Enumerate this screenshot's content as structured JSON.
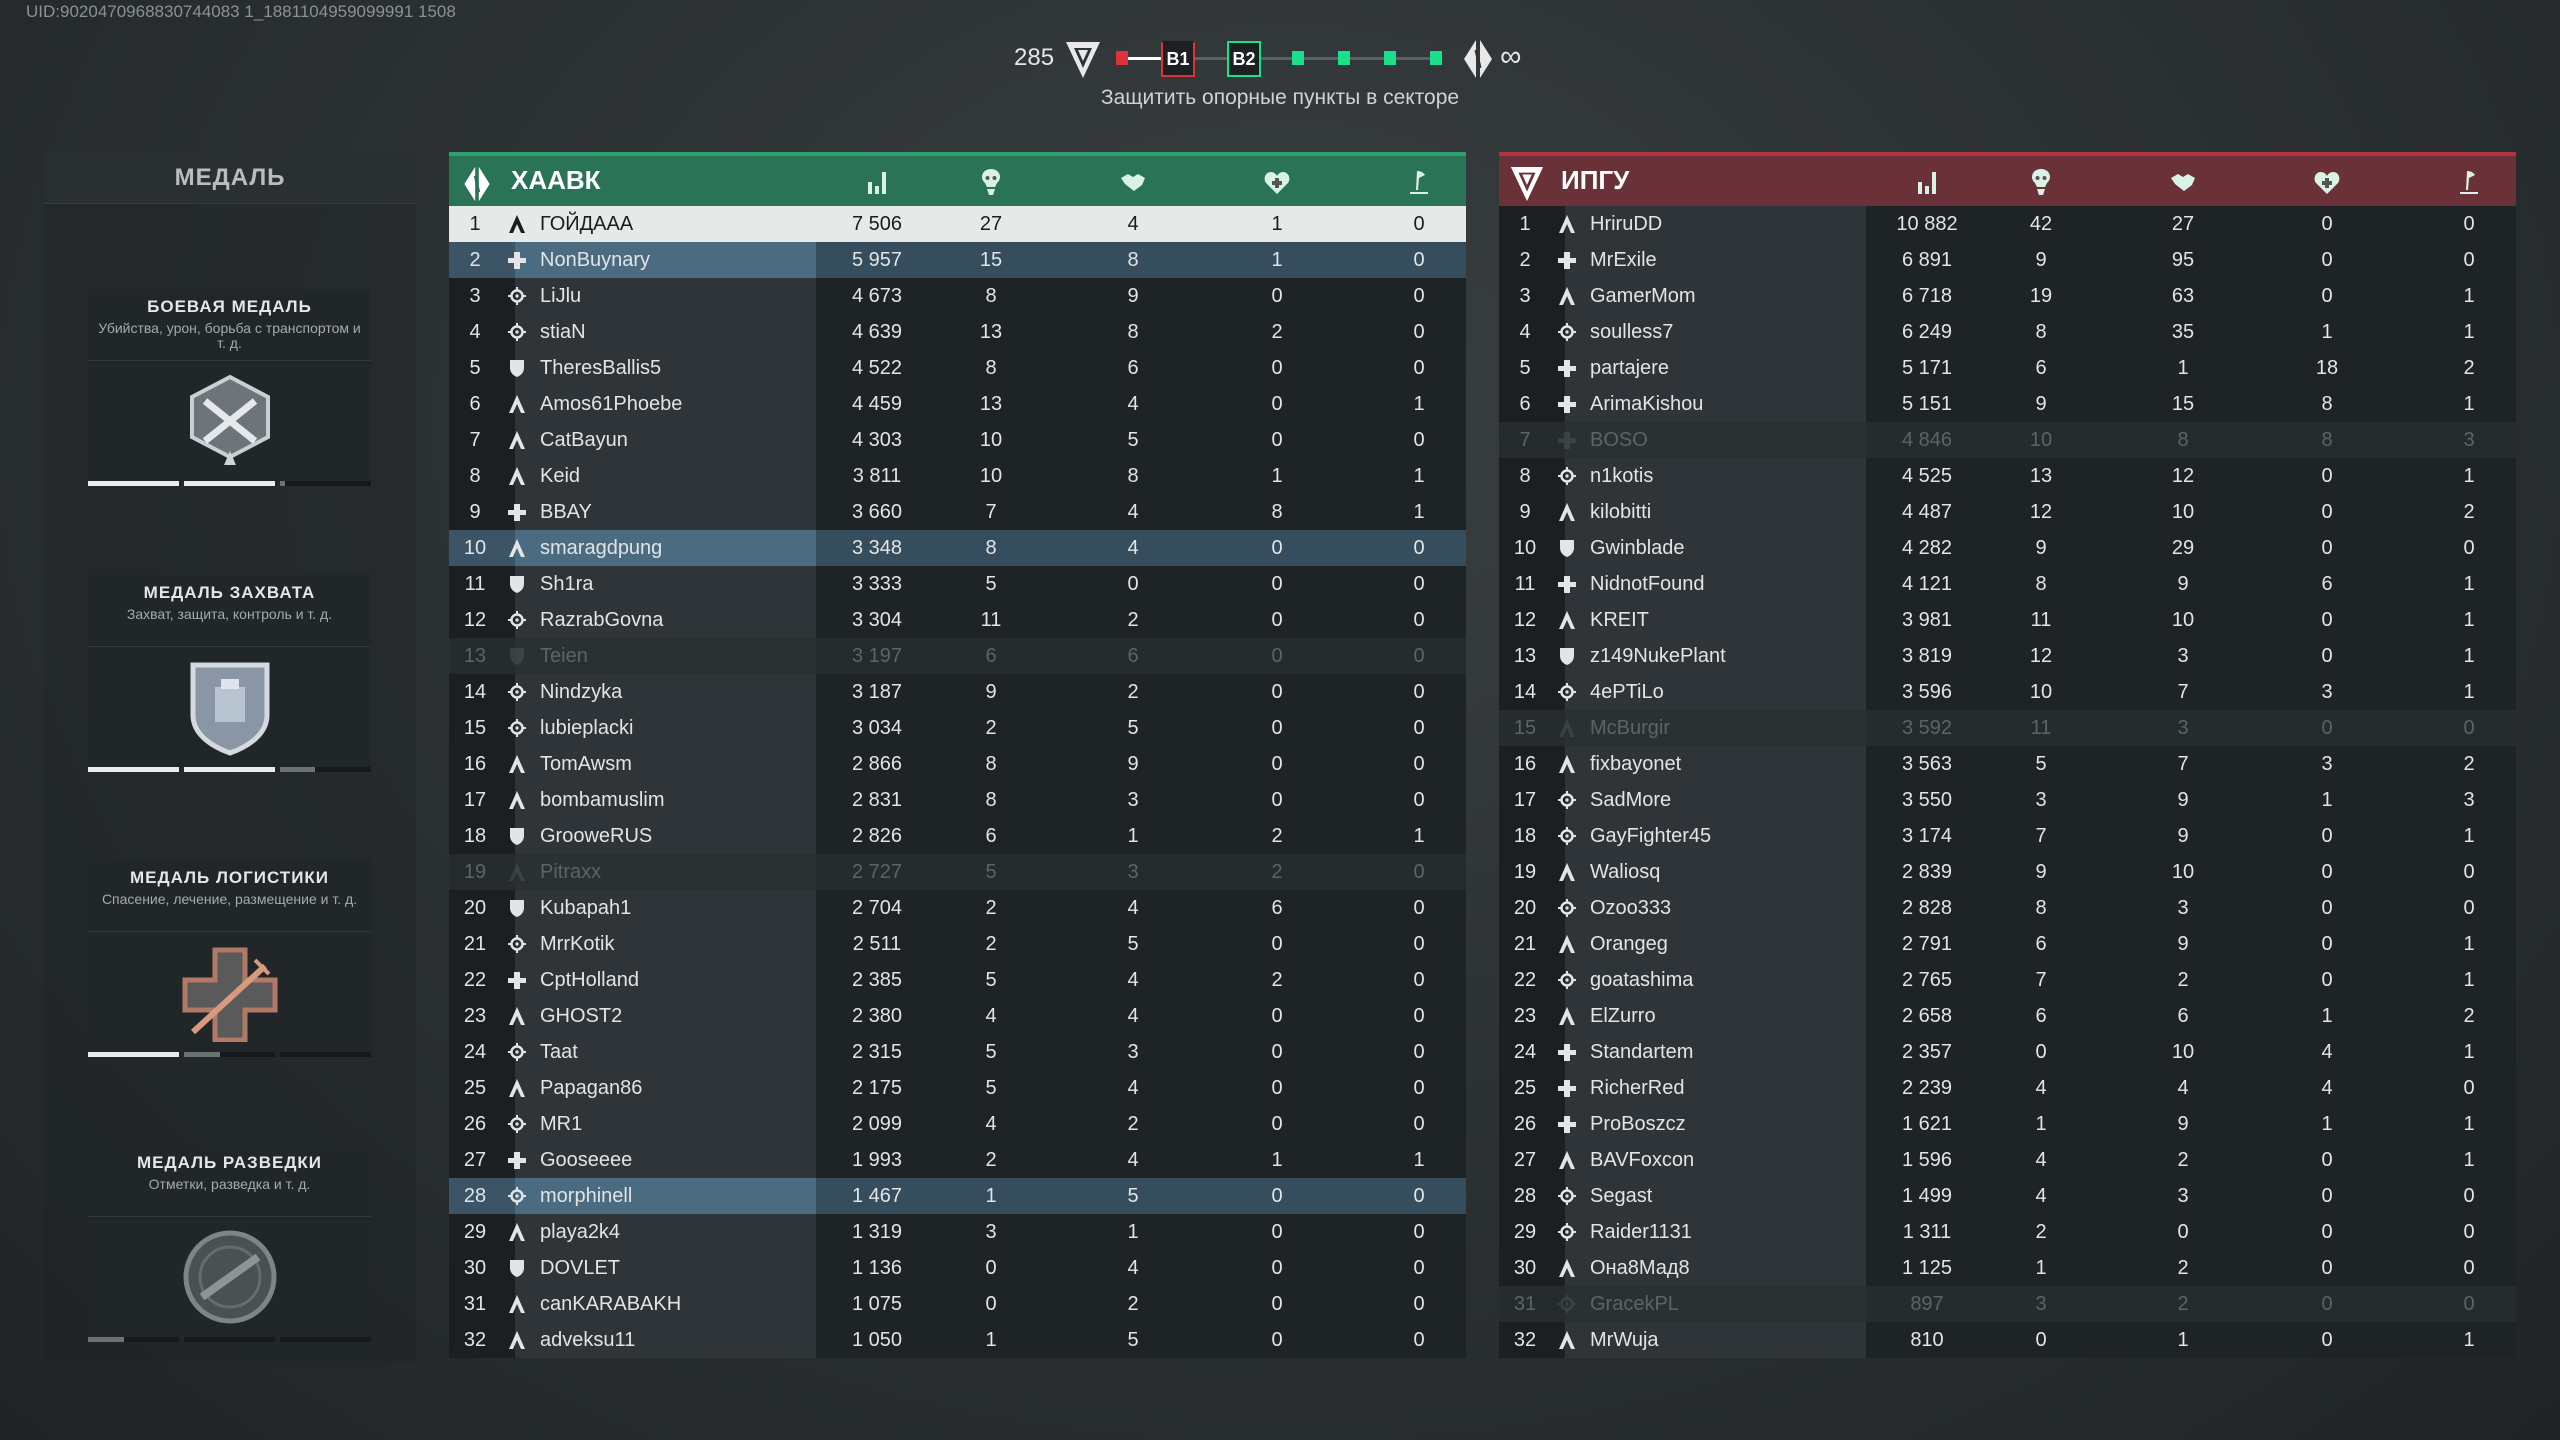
{
  "uid": "UID:9020470968830744083 1_1881104959099991 1508",
  "hud": {
    "score": "285",
    "points": [
      "B1",
      "B2"
    ],
    "reinforcements": "∞",
    "objective": "Защитить опорные пункты в секторе",
    "colors": {
      "enemy": "#e0303a",
      "ally": "#19e08a"
    }
  },
  "medals": {
    "title": "МЕДАЛЬ",
    "cards": [
      {
        "title": "БОЕВАЯ МЕДАЛЬ",
        "desc": "Убийства, урон, борьба с транспортом и т. д.",
        "icon": "crossed-swords-medal-icon",
        "progress": [
          1,
          1,
          0.06
        ]
      },
      {
        "title": "МЕДАЛЬ ЗАХВАТА",
        "desc": "Захват, защита, контроль и т. д.",
        "icon": "fortress-shield-medal-icon",
        "progress": [
          1,
          1,
          0.38
        ]
      },
      {
        "title": "МЕДАЛЬ ЛОГИСТИКИ",
        "desc": "Спасение, лечение, размещение и т. д.",
        "icon": "syringe-cross-medal-icon",
        "progress": [
          1,
          0.4,
          0
        ]
      },
      {
        "title": "МЕДАЛЬ РАЗВЕДКИ",
        "desc": "Отметки, разведка и т. д.",
        "icon": "recon-globe-medal-icon",
        "progress": [
          0.4,
          0,
          0
        ]
      }
    ]
  },
  "columns": [
    "score-icon",
    "kills-icon",
    "assists-icon",
    "revives-icon",
    "captures-icon"
  ],
  "teams": [
    {
      "name": "ХААВК",
      "color": "#2a7356",
      "border": "#2f9f6e",
      "players": [
        {
          "r": "1",
          "c": "assault",
          "n": "ГОЙДААА",
          "s": "7 506",
          "k": "27",
          "a": "4",
          "h": "1",
          "o": "0",
          "st": "self"
        },
        {
          "r": "2",
          "c": "medic",
          "n": "NonBuynary",
          "s": "5 957",
          "k": "15",
          "a": "8",
          "h": "1",
          "o": "0",
          "st": "squad"
        },
        {
          "r": "3",
          "c": "recon",
          "n": "LiJlu",
          "s": "4 673",
          "k": "8",
          "a": "9",
          "h": "0",
          "o": "0"
        },
        {
          "r": "4",
          "c": "recon",
          "n": "stiaN",
          "s": "4 639",
          "k": "13",
          "a": "8",
          "h": "2",
          "o": "0"
        },
        {
          "r": "5",
          "c": "support",
          "n": "TheresBallis5",
          "s": "4 522",
          "k": "8",
          "a": "6",
          "h": "0",
          "o": "0"
        },
        {
          "r": "6",
          "c": "assault",
          "n": "Amos61Phoebe",
          "s": "4 459",
          "k": "13",
          "a": "4",
          "h": "0",
          "o": "1"
        },
        {
          "r": "7",
          "c": "assault",
          "n": "CatBayun",
          "s": "4 303",
          "k": "10",
          "a": "5",
          "h": "0",
          "o": "0"
        },
        {
          "r": "8",
          "c": "assault",
          "n": "Keid",
          "s": "3 811",
          "k": "10",
          "a": "8",
          "h": "1",
          "o": "1"
        },
        {
          "r": "9",
          "c": "medic",
          "n": "BBAY",
          "s": "3 660",
          "k": "7",
          "a": "4",
          "h": "8",
          "o": "1"
        },
        {
          "r": "10",
          "c": "assault",
          "n": "smaragdpung",
          "s": "3 348",
          "k": "8",
          "a": "4",
          "h": "0",
          "o": "0",
          "st": "squad"
        },
        {
          "r": "11",
          "c": "support",
          "n": "Sh1ra",
          "s": "3 333",
          "k": "5",
          "a": "0",
          "h": "0",
          "o": "0"
        },
        {
          "r": "12",
          "c": "recon",
          "n": "RazrabGovna",
          "s": "3 304",
          "k": "11",
          "a": "2",
          "h": "0",
          "o": "0"
        },
        {
          "r": "13",
          "c": "support",
          "n": "Teien",
          "s": "3 197",
          "k": "6",
          "a": "6",
          "h": "0",
          "o": "0",
          "st": "faded"
        },
        {
          "r": "14",
          "c": "recon",
          "n": "Nindzyka",
          "s": "3 187",
          "k": "9",
          "a": "2",
          "h": "0",
          "o": "0"
        },
        {
          "r": "15",
          "c": "recon",
          "n": "lubieplacki",
          "s": "3 034",
          "k": "2",
          "a": "5",
          "h": "0",
          "o": "0"
        },
        {
          "r": "16",
          "c": "assault",
          "n": "TomAwsm",
          "s": "2 866",
          "k": "8",
          "a": "9",
          "h": "0",
          "o": "0"
        },
        {
          "r": "17",
          "c": "assault",
          "n": "bombamuslim",
          "s": "2 831",
          "k": "8",
          "a": "3",
          "h": "0",
          "o": "0"
        },
        {
          "r": "18",
          "c": "support",
          "n": "GrooweRUS",
          "s": "2 826",
          "k": "6",
          "a": "1",
          "h": "2",
          "o": "1"
        },
        {
          "r": "19",
          "c": "assault",
          "n": "Pitraxx",
          "s": "2 727",
          "k": "5",
          "a": "3",
          "h": "2",
          "o": "0",
          "st": "faded"
        },
        {
          "r": "20",
          "c": "support",
          "n": "Kubapah1",
          "s": "2 704",
          "k": "2",
          "a": "4",
          "h": "6",
          "o": "0"
        },
        {
          "r": "21",
          "c": "recon",
          "n": "MrrKotik",
          "s": "2 511",
          "k": "2",
          "a": "5",
          "h": "0",
          "o": "0"
        },
        {
          "r": "22",
          "c": "medic",
          "n": "CptHolland",
          "s": "2 385",
          "k": "5",
          "a": "4",
          "h": "2",
          "o": "0"
        },
        {
          "r": "23",
          "c": "assault",
          "n": "GHOST2",
          "s": "2 380",
          "k": "4",
          "a": "4",
          "h": "0",
          "o": "0"
        },
        {
          "r": "24",
          "c": "recon",
          "n": "Taat",
          "s": "2 315",
          "k": "5",
          "a": "3",
          "h": "0",
          "o": "0"
        },
        {
          "r": "25",
          "c": "assault",
          "n": "Papagan86",
          "s": "2 175",
          "k": "5",
          "a": "4",
          "h": "0",
          "o": "0"
        },
        {
          "r": "26",
          "c": "recon",
          "n": "MR1",
          "s": "2 099",
          "k": "4",
          "a": "2",
          "h": "0",
          "o": "0"
        },
        {
          "r": "27",
          "c": "medic",
          "n": "Gooseeee",
          "s": "1 993",
          "k": "2",
          "a": "4",
          "h": "1",
          "o": "1"
        },
        {
          "r": "28",
          "c": "recon",
          "n": "morphinell",
          "s": "1 467",
          "k": "1",
          "a": "5",
          "h": "0",
          "o": "0",
          "st": "squad"
        },
        {
          "r": "29",
          "c": "assault",
          "n": "playa2k4",
          "s": "1 319",
          "k": "3",
          "a": "1",
          "h": "0",
          "o": "0"
        },
        {
          "r": "30",
          "c": "support",
          "n": "DOVLET",
          "s": "1 136",
          "k": "0",
          "a": "4",
          "h": "0",
          "o": "0"
        },
        {
          "r": "31",
          "c": "assault",
          "n": "canKARABAKH",
          "s": "1 075",
          "k": "0",
          "a": "2",
          "h": "0",
          "o": "0"
        },
        {
          "r": "32",
          "c": "assault",
          "n": "adveksu11",
          "s": "1 050",
          "k": "1",
          "a": "5",
          "h": "0",
          "o": "0"
        }
      ]
    },
    {
      "name": "ИПГУ",
      "color": "#6a3238",
      "border": "#b03341",
      "players": [
        {
          "r": "1",
          "c": "assault",
          "n": "HriruDD",
          "s": "10 882",
          "k": "42",
          "a": "27",
          "h": "0",
          "o": "0"
        },
        {
          "r": "2",
          "c": "medic",
          "n": "MrExile",
          "s": "6 891",
          "k": "9",
          "a": "95",
          "h": "0",
          "o": "0"
        },
        {
          "r": "3",
          "c": "assault",
          "n": "GamerMom",
          "s": "6 718",
          "k": "19",
          "a": "63",
          "h": "0",
          "o": "1"
        },
        {
          "r": "4",
          "c": "recon",
          "n": "soulless7",
          "s": "6 249",
          "k": "8",
          "a": "35",
          "h": "1",
          "o": "1"
        },
        {
          "r": "5",
          "c": "medic",
          "n": "partajere",
          "s": "5 171",
          "k": "6",
          "a": "1",
          "h": "18",
          "o": "2"
        },
        {
          "r": "6",
          "c": "medic",
          "n": "ArimaKishou",
          "s": "5 151",
          "k": "9",
          "a": "15",
          "h": "8",
          "o": "1"
        },
        {
          "r": "7",
          "c": "medic",
          "n": "BOSO",
          "s": "4 846",
          "k": "10",
          "a": "8",
          "h": "8",
          "o": "3",
          "st": "faded"
        },
        {
          "r": "8",
          "c": "recon",
          "n": "n1kotis",
          "s": "4 525",
          "k": "13",
          "a": "12",
          "h": "0",
          "o": "1"
        },
        {
          "r": "9",
          "c": "assault",
          "n": "kilobitti",
          "s": "4 487",
          "k": "12",
          "a": "10",
          "h": "0",
          "o": "2"
        },
        {
          "r": "10",
          "c": "support",
          "n": "Gwinblade",
          "s": "4 282",
          "k": "9",
          "a": "29",
          "h": "0",
          "o": "0"
        },
        {
          "r": "11",
          "c": "medic",
          "n": "NidnotFound",
          "s": "4 121",
          "k": "8",
          "a": "9",
          "h": "6",
          "o": "1"
        },
        {
          "r": "12",
          "c": "assault",
          "n": "KREIT",
          "s": "3 981",
          "k": "11",
          "a": "10",
          "h": "0",
          "o": "1"
        },
        {
          "r": "13",
          "c": "support",
          "n": "z149NukePlant",
          "s": "3 819",
          "k": "12",
          "a": "3",
          "h": "0",
          "o": "1"
        },
        {
          "r": "14",
          "c": "recon",
          "n": "4ePTiLo",
          "s": "3 596",
          "k": "10",
          "a": "7",
          "h": "3",
          "o": "1"
        },
        {
          "r": "15",
          "c": "assault",
          "n": "McBurgir",
          "s": "3 592",
          "k": "11",
          "a": "3",
          "h": "0",
          "o": "0",
          "st": "faded"
        },
        {
          "r": "16",
          "c": "assault",
          "n": "fixbayonet",
          "s": "3 563",
          "k": "5",
          "a": "7",
          "h": "3",
          "o": "2"
        },
        {
          "r": "17",
          "c": "recon",
          "n": "SadMore",
          "s": "3 550",
          "k": "3",
          "a": "9",
          "h": "1",
          "o": "3"
        },
        {
          "r": "18",
          "c": "recon",
          "n": "GayFighter45",
          "s": "3 174",
          "k": "7",
          "a": "9",
          "h": "0",
          "o": "1"
        },
        {
          "r": "19",
          "c": "assault",
          "n": "Waliosq",
          "s": "2 839",
          "k": "9",
          "a": "10",
          "h": "0",
          "o": "0"
        },
        {
          "r": "20",
          "c": "recon",
          "n": "Ozoo333",
          "s": "2 828",
          "k": "8",
          "a": "3",
          "h": "0",
          "o": "0"
        },
        {
          "r": "21",
          "c": "assault",
          "n": "Orangeg",
          "s": "2 791",
          "k": "6",
          "a": "9",
          "h": "0",
          "o": "1"
        },
        {
          "r": "22",
          "c": "recon",
          "n": "goatashima",
          "s": "2 765",
          "k": "7",
          "a": "2",
          "h": "0",
          "o": "1"
        },
        {
          "r": "23",
          "c": "assault",
          "n": "ElZurro",
          "s": "2 658",
          "k": "6",
          "a": "6",
          "h": "1",
          "o": "2"
        },
        {
          "r": "24",
          "c": "medic",
          "n": "Standartem",
          "s": "2 357",
          "k": "0",
          "a": "10",
          "h": "4",
          "o": "1"
        },
        {
          "r": "25",
          "c": "medic",
          "n": "RicherRed",
          "s": "2 239",
          "k": "4",
          "a": "4",
          "h": "4",
          "o": "0"
        },
        {
          "r": "26",
          "c": "medic",
          "n": "ProBoszcz",
          "s": "1 621",
          "k": "1",
          "a": "9",
          "h": "1",
          "o": "1"
        },
        {
          "r": "27",
          "c": "assault",
          "n": "BAVFoxcon",
          "s": "1 596",
          "k": "4",
          "a": "2",
          "h": "0",
          "o": "1"
        },
        {
          "r": "28",
          "c": "recon",
          "n": "Segast",
          "s": "1 499",
          "k": "4",
          "a": "3",
          "h": "0",
          "o": "0"
        },
        {
          "r": "29",
          "c": "recon",
          "n": "Raider1131",
          "s": "1 311",
          "k": "2",
          "a": "0",
          "h": "0",
          "o": "0"
        },
        {
          "r": "30",
          "c": "assault",
          "n": "Она8Мад8",
          "s": "1 125",
          "k": "1",
          "a": "2",
          "h": "0",
          "o": "0"
        },
        {
          "r": "31",
          "c": "recon",
          "n": "GracekPL",
          "s": "897",
          "k": "3",
          "a": "2",
          "h": "0",
          "o": "0",
          "st": "faded"
        },
        {
          "r": "32",
          "c": "assault",
          "n": "MrWuja",
          "s": "810",
          "k": "0",
          "a": "1",
          "h": "0",
          "o": "1"
        }
      ]
    }
  ]
}
